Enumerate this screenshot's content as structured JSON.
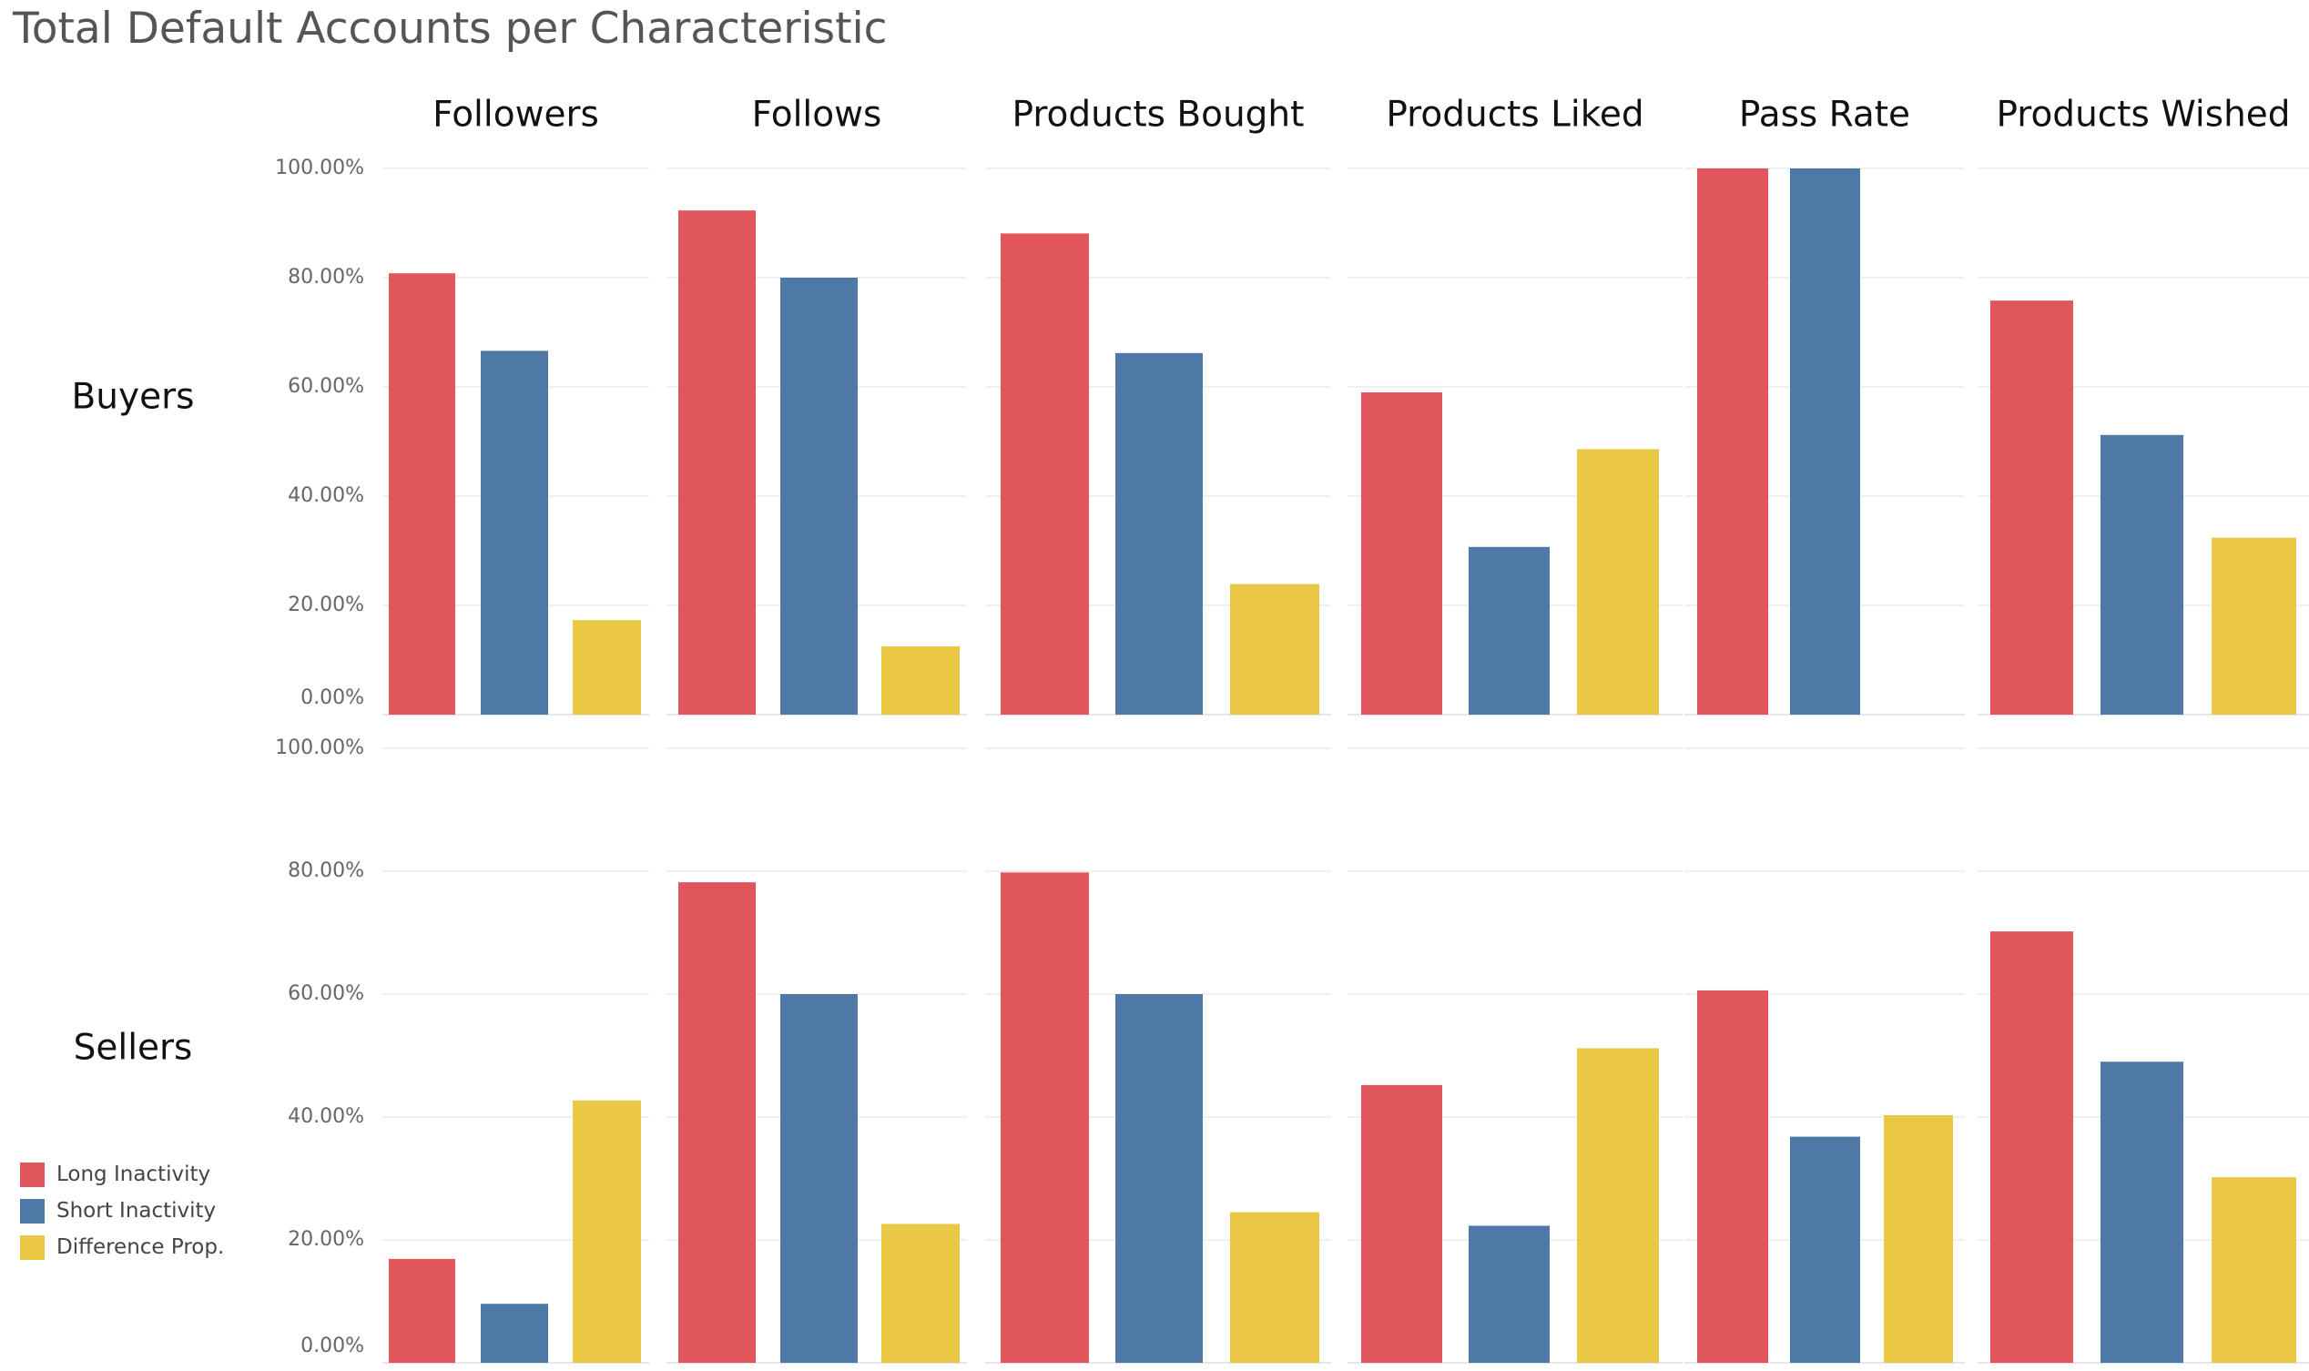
{
  "colors": {
    "long": "#e0565b",
    "short": "#4e79a7",
    "diff": "#eac846"
  },
  "chart_data": {
    "type": "bar",
    "title": "Total Default Accounts per Characteristic",
    "columns": [
      "Followers",
      "Follows",
      "Products Bought",
      "Products Liked",
      "Pass Rate",
      "Products Wished"
    ],
    "rows": [
      "Buyers",
      "Sellers"
    ],
    "series": [
      {
        "name": "Long Inactivity",
        "color": "#e0565b"
      },
      {
        "name": "Short Inactivity",
        "color": "#4e79a7"
      },
      {
        "name": "Difference Prop.",
        "color": "#eac846"
      }
    ],
    "values": {
      "Buyers": [
        [
          80.8,
          66.6,
          17.3
        ],
        [
          92.3,
          80.0,
          12.5
        ],
        [
          88.1,
          66.2,
          23.9
        ],
        [
          59.0,
          30.7,
          48.6
        ],
        [
          100,
          100,
          null
        ],
        [
          75.8,
          51.2,
          32.4
        ]
      ],
      "Sellers": [
        [
          16.9,
          9.6,
          42.7
        ],
        [
          78.2,
          60.0,
          22.6
        ],
        [
          79.8,
          60.0,
          24.5
        ],
        [
          45.2,
          22.3,
          51.2
        ],
        [
          60.6,
          36.8,
          40.3
        ],
        [
          70.2,
          49.0,
          30.2
        ]
      ]
    },
    "row_ylim": {
      "Buyers": [
        0,
        100
      ],
      "Sellers": [
        0,
        100
      ]
    },
    "yticks": [
      {
        "value": 0,
        "label": "0.00%"
      },
      {
        "value": 20,
        "label": "20.00%"
      },
      {
        "value": 40,
        "label": "40.00%"
      },
      {
        "value": 60,
        "label": "60.00%"
      },
      {
        "value": 80,
        "label": "80.00%"
      },
      {
        "value": 100,
        "label": "100.00%"
      }
    ],
    "grid": true,
    "legend_position": "bottom-left"
  }
}
